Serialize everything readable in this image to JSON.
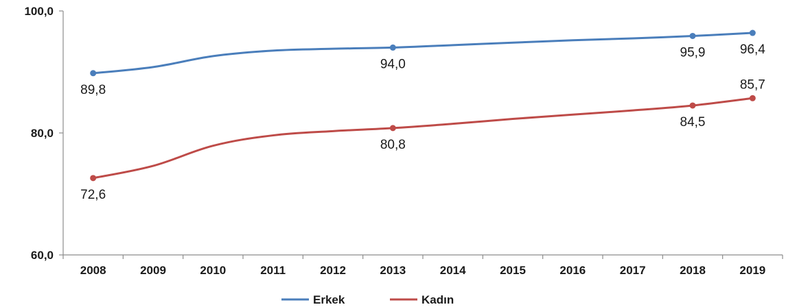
{
  "chart_data": {
    "type": "line",
    "title": "",
    "xlabel": "",
    "ylabel": "",
    "categories": [
      "2008",
      "2009",
      "2010",
      "2011",
      "2012",
      "2013",
      "2014",
      "2015",
      "2016",
      "2017",
      "2018",
      "2019"
    ],
    "ylim": [
      60,
      100
    ],
    "yticks": [
      "60,0",
      "80,0",
      "100,0"
    ],
    "ytick_values": [
      60,
      80,
      100
    ],
    "grid": false,
    "legend_position": "bottom",
    "series": [
      {
        "name": "Erkek",
        "color": "#4a7ebb",
        "values": [
          89.8,
          90.8,
          92.6,
          93.5,
          93.8,
          94.0,
          94.4,
          94.8,
          95.2,
          95.5,
          95.9,
          96.4
        ],
        "labels": [
          {
            "index": 0,
            "text": "89,8",
            "position": "below"
          },
          {
            "index": 5,
            "text": "94,0",
            "position": "below"
          },
          {
            "index": 10,
            "text": "95,9",
            "position": "below"
          },
          {
            "index": 11,
            "text": "96,4",
            "position": "below"
          }
        ]
      },
      {
        "name": "Kadın",
        "color": "#be4b48",
        "values": [
          72.6,
          74.6,
          77.9,
          79.6,
          80.3,
          80.8,
          81.5,
          82.3,
          83.0,
          83.7,
          84.5,
          85.7
        ],
        "labels": [
          {
            "index": 0,
            "text": "72,6",
            "position": "below"
          },
          {
            "index": 5,
            "text": "80,8",
            "position": "below"
          },
          {
            "index": 10,
            "text": "84,5",
            "position": "below"
          },
          {
            "index": 11,
            "text": "85,7",
            "position": "above"
          }
        ]
      }
    ]
  }
}
